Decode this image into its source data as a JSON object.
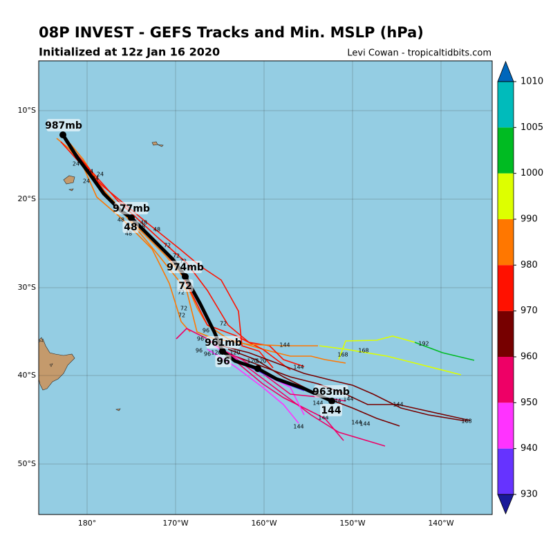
{
  "header": {
    "title": "08P INVEST - GEFS Tracks and Min. MSLP (hPa)",
    "subtitle": "Initialized at 12z Jan 16 2020",
    "credit": "Levi Cowan - tropicaltidbits.com"
  },
  "map": {
    "lat_labels": [
      "10°S",
      "20°S",
      "30°S",
      "40°S",
      "50°S"
    ],
    "lon_labels": [
      "180°",
      "170°W",
      "160°W",
      "150°W",
      "140°W"
    ],
    "mean_labels": [
      "987mb",
      "977mb",
      "48",
      "974mb",
      "72",
      "961mb",
      "96",
      "963mb",
      "144"
    ],
    "member_labels": [
      "24",
      "24",
      "24",
      "24",
      "24",
      "48",
      "48",
      "48",
      "48",
      "48",
      "72",
      "72",
      "72",
      "72",
      "72",
      "72",
      "72",
      "96",
      "96",
      "96",
      "96",
      "120",
      "120",
      "120",
      "120",
      "144",
      "144",
      "144",
      "144",
      "144",
      "144",
      "144",
      "144",
      "144",
      "144",
      "168",
      "168",
      "168",
      "192"
    ]
  },
  "colorbar": {
    "ticks": [
      930,
      940,
      950,
      960,
      970,
      980,
      990,
      1000,
      1005,
      1010
    ],
    "colors": [
      "#6633ff",
      "#ff33ff",
      "#ee0066",
      "#770000",
      "#ff1100",
      "#ff7700",
      "#ddff00",
      "#00bb22",
      "#00bbbb"
    ],
    "extend_colors": [
      "#1a1a99",
      "#0066bb"
    ]
  }
}
